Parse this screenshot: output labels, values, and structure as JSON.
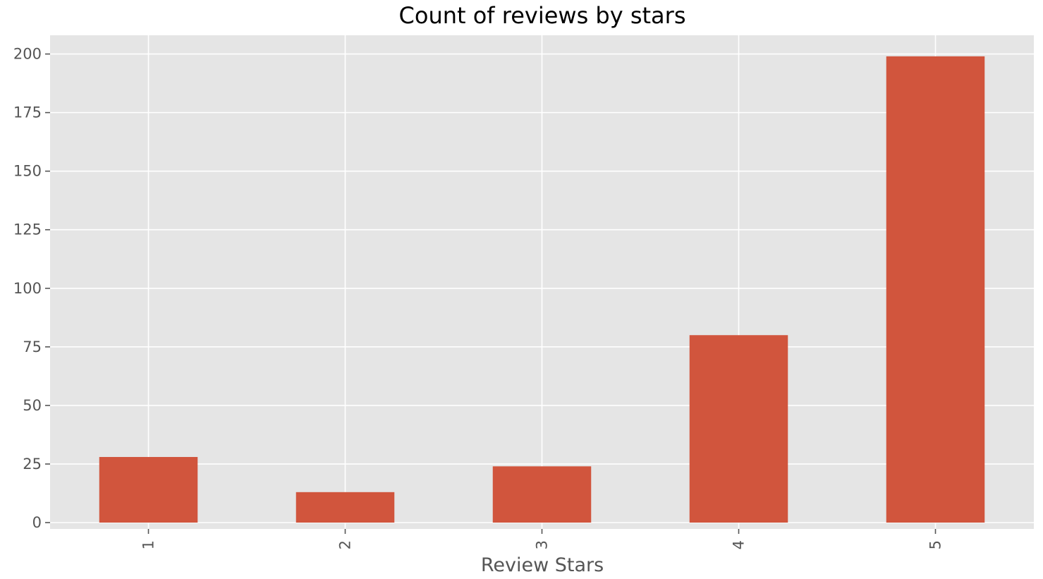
{
  "chart_data": {
    "type": "bar",
    "title": "Count of reviews by stars",
    "xlabel": "Review Stars",
    "ylabel": "",
    "categories": [
      "1",
      "2",
      "3",
      "4",
      "5"
    ],
    "values": [
      28,
      13,
      24,
      80,
      199
    ],
    "ylim": [
      0,
      208
    ],
    "yticks": [
      0,
      25,
      50,
      75,
      100,
      125,
      150,
      175,
      200
    ],
    "ytick_labels": [
      "0",
      "25",
      "50",
      "75",
      "100",
      "125",
      "150",
      "175",
      "200"
    ],
    "xtick_rotation": 90,
    "grid": true,
    "legend": "none",
    "colors": {
      "bar": "#d1553d",
      "plot_background": "#e5e5e5",
      "grid": "#ffffff",
      "tick": "#555555",
      "title": "#000000"
    }
  }
}
